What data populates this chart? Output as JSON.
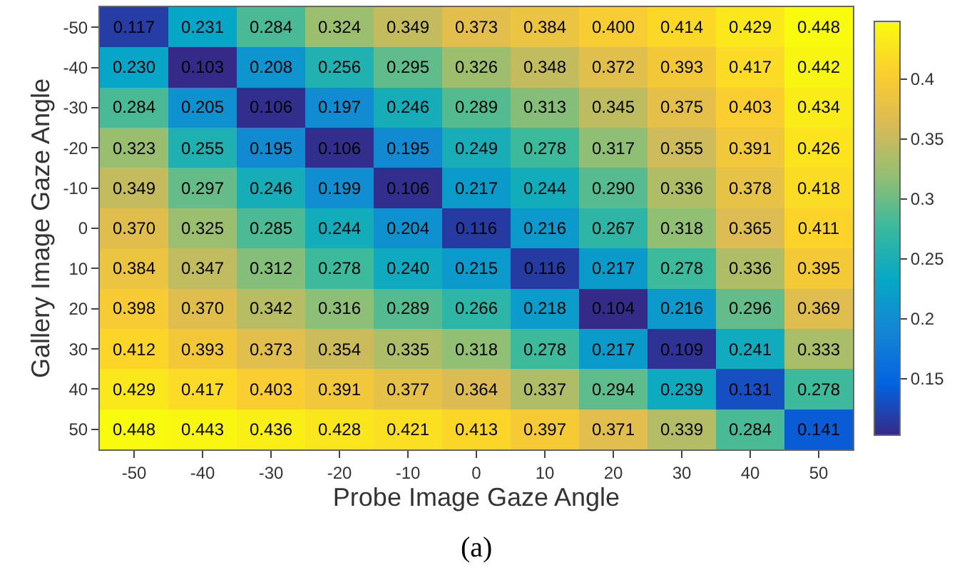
{
  "chart_data": {
    "type": "heatmap",
    "xlabel": "Probe Image Gaze Angle",
    "ylabel": "Gallery Image Gaze Angle",
    "annotations": [
      "(a)"
    ],
    "categories": [
      "-50",
      "-40",
      "-30",
      "-20",
      "-10",
      "0",
      "10",
      "20",
      "30",
      "40",
      "50"
    ],
    "y_categories": [
      "-50",
      "-40",
      "-30",
      "-20",
      "-10",
      "0",
      "10",
      "20",
      "30",
      "40",
      "50"
    ],
    "cells": [
      [
        0.117,
        0.231,
        0.284,
        0.324,
        0.349,
        0.373,
        0.384,
        0.4,
        0.414,
        0.429,
        0.448
      ],
      [
        0.23,
        0.103,
        0.208,
        0.256,
        0.295,
        0.326,
        0.348,
        0.372,
        0.393,
        0.417,
        0.442
      ],
      [
        0.284,
        0.205,
        0.106,
        0.197,
        0.246,
        0.289,
        0.313,
        0.345,
        0.375,
        0.403,
        0.434
      ],
      [
        0.323,
        0.255,
        0.195,
        0.106,
        0.195,
        0.249,
        0.278,
        0.317,
        0.355,
        0.391,
        0.426
      ],
      [
        0.349,
        0.297,
        0.246,
        0.199,
        0.106,
        0.217,
        0.244,
        0.29,
        0.336,
        0.378,
        0.418
      ],
      [
        0.37,
        0.325,
        0.285,
        0.244,
        0.204,
        0.116,
        0.216,
        0.267,
        0.318,
        0.365,
        0.411
      ],
      [
        0.384,
        0.347,
        0.312,
        0.278,
        0.24,
        0.215,
        0.116,
        0.217,
        0.278,
        0.336,
        0.395
      ],
      [
        0.398,
        0.37,
        0.342,
        0.316,
        0.289,
        0.266,
        0.218,
        0.104,
        0.216,
        0.296,
        0.369
      ],
      [
        0.412,
        0.393,
        0.373,
        0.354,
        0.335,
        0.318,
        0.278,
        0.217,
        0.109,
        0.241,
        0.333
      ],
      [
        0.429,
        0.417,
        0.403,
        0.391,
        0.377,
        0.364,
        0.337,
        0.294,
        0.239,
        0.131,
        0.278
      ],
      [
        0.448,
        0.443,
        0.436,
        0.428,
        0.421,
        0.413,
        0.397,
        0.371,
        0.339,
        0.284,
        0.141
      ]
    ],
    "cell_labels": [
      [
        "0.117",
        "0.231",
        "0.284",
        "0.324",
        "0.349",
        "0.373",
        "0.384",
        "0.400",
        "0.414",
        "0.429",
        "0.448"
      ],
      [
        "0.230",
        "0.103",
        "0.208",
        "0.256",
        "0.295",
        "0.326",
        "0.348",
        "0.372",
        "0.393",
        "0.417",
        "0.442"
      ],
      [
        "0.284",
        "0.205",
        "0.106",
        "0.197",
        "0.246",
        "0.289",
        "0.313",
        "0.345",
        "0.375",
        "0.403",
        "0.434"
      ],
      [
        "0.323",
        "0.255",
        "0.195",
        "0.106",
        "0.195",
        "0.249",
        "0.278",
        "0.317",
        "0.355",
        "0.391",
        "0.426"
      ],
      [
        "0.349",
        "0.297",
        "0.246",
        "0.199",
        "0.106",
        "0.217",
        "0.244",
        "0.290",
        "0.336",
        "0.378",
        "0.418"
      ],
      [
        "0.370",
        "0.325",
        "0.285",
        "0.244",
        "0.204",
        "0.116",
        "0.216",
        "0.267",
        "0.318",
        "0.365",
        "0.411"
      ],
      [
        "0.384",
        "0.347",
        "0.312",
        "0.278",
        "0.240",
        "0.215",
        "0.116",
        "0.217",
        "0.278",
        "0.336",
        "0.395"
      ],
      [
        "0.398",
        "0.370",
        "0.342",
        "0.316",
        "0.289",
        "0.266",
        "0.218",
        "0.104",
        "0.216",
        "0.296",
        "0.369"
      ],
      [
        "0.412",
        "0.393",
        "0.373",
        "0.354",
        "0.335",
        "0.318",
        "0.278",
        "0.217",
        "0.109",
        "0.241",
        "0.333"
      ],
      [
        "0.429",
        "0.417",
        "0.403",
        "0.391",
        "0.377",
        "0.364",
        "0.337",
        "0.294",
        "0.239",
        "0.131",
        "0.278"
      ],
      [
        "0.448",
        "0.443",
        "0.436",
        "0.428",
        "0.421",
        "0.413",
        "0.397",
        "0.371",
        "0.339",
        "0.284",
        "0.141"
      ]
    ],
    "clim": [
      0.103,
      0.448
    ],
    "cticks": [
      0.15,
      0.2,
      0.25,
      0.3,
      0.35,
      0.4
    ]
  }
}
